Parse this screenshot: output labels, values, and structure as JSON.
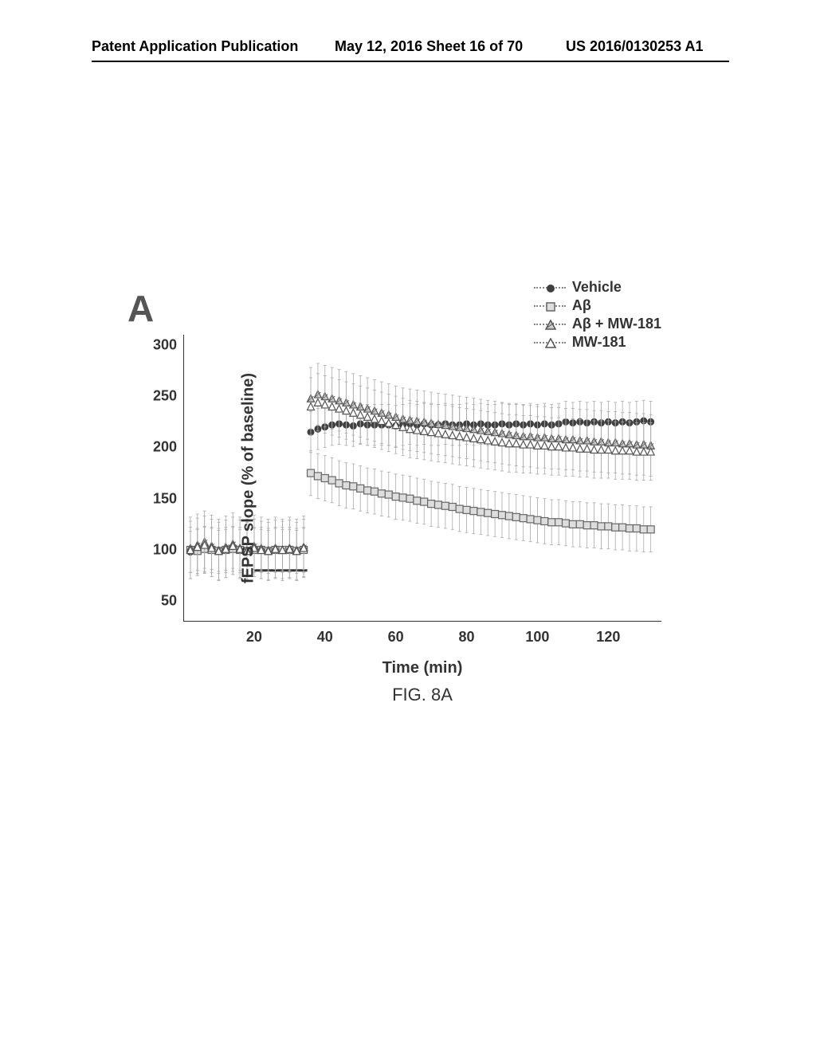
{
  "header": {
    "left": "Patent Application Publication",
    "center": "May 12, 2016  Sheet 16 of 70",
    "right": "US 2016/0130253 A1"
  },
  "figure": {
    "panel_label": "A",
    "caption": "FIG. 8A",
    "chart": {
      "type": "scatter-errorbar",
      "x_label": "Time (min)",
      "y_label": "fEPSP slope (% of baseline)",
      "x_ticks": [
        20,
        40,
        60,
        80,
        100,
        120
      ],
      "y_ticks": [
        50,
        100,
        150,
        200,
        250,
        300
      ],
      "xlim": [
        0,
        135
      ],
      "ylim": [
        30,
        310
      ],
      "background_color": "#ffffff",
      "axis_color": "#333333",
      "errorbar_color": "#aaaaaa",
      "label_fontsize": 20,
      "tick_fontsize": 18,
      "marker_size": 9,
      "line_style": "dotted",
      "perfusion_bar": {
        "x_start": 20,
        "x_end": 35,
        "y": 80,
        "color": "#333333"
      },
      "legend": {
        "items": [
          {
            "label": "Vehicle",
            "marker": "circle-filled",
            "color": "#404040"
          },
          {
            "label": "Aβ",
            "marker": "square-open",
            "color": "#888888"
          },
          {
            "label": "Aβ + MW-181",
            "marker": "triangle-hatched",
            "color": "#888888"
          },
          {
            "label": "MW-181",
            "marker": "triangle-open",
            "color": "#888888"
          }
        ]
      },
      "series": [
        {
          "name": "Vehicle",
          "marker": "circle-filled",
          "color": "#404040",
          "errorbar": 20,
          "data": [
            [
              2,
              98
            ],
            [
              4,
              100
            ],
            [
              6,
              102
            ],
            [
              8,
              101
            ],
            [
              10,
              99
            ],
            [
              12,
              100
            ],
            [
              14,
              102
            ],
            [
              16,
              100
            ],
            [
              18,
              99
            ],
            [
              20,
              101
            ],
            [
              22,
              100
            ],
            [
              24,
              99
            ],
            [
              26,
              101
            ],
            [
              28,
              100
            ],
            [
              30,
              100
            ],
            [
              32,
              99
            ],
            [
              34,
              101
            ],
            [
              36,
              215
            ],
            [
              38,
              218
            ],
            [
              40,
              220
            ],
            [
              42,
              222
            ],
            [
              44,
              223
            ],
            [
              46,
              222
            ],
            [
              48,
              221
            ],
            [
              50,
              223
            ],
            [
              52,
              222
            ],
            [
              54,
              222
            ],
            [
              56,
              222
            ],
            [
              58,
              222
            ],
            [
              60,
              221
            ],
            [
              62,
              222
            ],
            [
              64,
              223
            ],
            [
              66,
              222
            ],
            [
              68,
              223
            ],
            [
              70,
              222
            ],
            [
              72,
              222
            ],
            [
              74,
              223
            ],
            [
              76,
              222
            ],
            [
              78,
              222
            ],
            [
              80,
              223
            ],
            [
              82,
              222
            ],
            [
              84,
              223
            ],
            [
              86,
              222
            ],
            [
              88,
              222
            ],
            [
              90,
              223
            ],
            [
              92,
              222
            ],
            [
              94,
              223
            ],
            [
              96,
              222
            ],
            [
              98,
              223
            ],
            [
              100,
              222
            ],
            [
              102,
              223
            ],
            [
              104,
              222
            ],
            [
              106,
              223
            ],
            [
              108,
              225
            ],
            [
              110,
              224
            ],
            [
              112,
              225
            ],
            [
              114,
              224
            ],
            [
              116,
              225
            ],
            [
              118,
              224
            ],
            [
              120,
              225
            ],
            [
              122,
              224
            ],
            [
              124,
              225
            ],
            [
              126,
              224
            ],
            [
              128,
              225
            ],
            [
              130,
              226
            ],
            [
              132,
              225
            ]
          ]
        },
        {
          "name": "Aβ",
          "marker": "square-open",
          "color": "#888888",
          "errorbar": 22,
          "data": [
            [
              2,
              100
            ],
            [
              4,
              99
            ],
            [
              6,
              101
            ],
            [
              8,
              100
            ],
            [
              10,
              99
            ],
            [
              12,
              100
            ],
            [
              14,
              101
            ],
            [
              16,
              100
            ],
            [
              18,
              99
            ],
            [
              20,
              100
            ],
            [
              22,
              100
            ],
            [
              24,
              99
            ],
            [
              26,
              100
            ],
            [
              28,
              100
            ],
            [
              30,
              100
            ],
            [
              32,
              99
            ],
            [
              34,
              100
            ],
            [
              36,
              175
            ],
            [
              38,
              172
            ],
            [
              40,
              170
            ],
            [
              42,
              168
            ],
            [
              44,
              165
            ],
            [
              46,
              163
            ],
            [
              48,
              162
            ],
            [
              50,
              160
            ],
            [
              52,
              158
            ],
            [
              54,
              157
            ],
            [
              56,
              155
            ],
            [
              58,
              154
            ],
            [
              60,
              152
            ],
            [
              62,
              151
            ],
            [
              64,
              150
            ],
            [
              66,
              148
            ],
            [
              68,
              147
            ],
            [
              70,
              145
            ],
            [
              72,
              144
            ],
            [
              74,
              143
            ],
            [
              76,
              142
            ],
            [
              78,
              140
            ],
            [
              80,
              139
            ],
            [
              82,
              138
            ],
            [
              84,
              137
            ],
            [
              86,
              136
            ],
            [
              88,
              135
            ],
            [
              90,
              134
            ],
            [
              92,
              133
            ],
            [
              94,
              132
            ],
            [
              96,
              131
            ],
            [
              98,
              130
            ],
            [
              100,
              129
            ],
            [
              102,
              128
            ],
            [
              104,
              127
            ],
            [
              106,
              127
            ],
            [
              108,
              126
            ],
            [
              110,
              125
            ],
            [
              112,
              125
            ],
            [
              114,
              124
            ],
            [
              116,
              124
            ],
            [
              118,
              123
            ],
            [
              120,
              123
            ],
            [
              122,
              122
            ],
            [
              124,
              122
            ],
            [
              126,
              121
            ],
            [
              128,
              121
            ],
            [
              130,
              120
            ],
            [
              132,
              120
            ]
          ]
        },
        {
          "name": "Aβ + MW-181",
          "marker": "triangle-hatched",
          "color": "#888888",
          "errorbar": 30,
          "data": [
            [
              2,
              102
            ],
            [
              4,
              105
            ],
            [
              6,
              108
            ],
            [
              8,
              104
            ],
            [
              10,
              100
            ],
            [
              12,
              103
            ],
            [
              14,
              106
            ],
            [
              16,
              102
            ],
            [
              18,
              100
            ],
            [
              20,
              104
            ],
            [
              22,
              102
            ],
            [
              24,
              100
            ],
            [
              26,
              102
            ],
            [
              28,
              100
            ],
            [
              30,
              102
            ],
            [
              32,
              100
            ],
            [
              34,
              103
            ],
            [
              36,
              248
            ],
            [
              38,
              252
            ],
            [
              40,
              250
            ],
            [
              42,
              248
            ],
            [
              44,
              246
            ],
            [
              46,
              244
            ],
            [
              48,
              242
            ],
            [
              50,
              240
            ],
            [
              52,
              238
            ],
            [
              54,
              236
            ],
            [
              56,
              234
            ],
            [
              58,
              232
            ],
            [
              60,
              230
            ],
            [
              62,
              228
            ],
            [
              64,
              227
            ],
            [
              66,
              226
            ],
            [
              68,
              225
            ],
            [
              70,
              224
            ],
            [
              72,
              223
            ],
            [
              74,
              222
            ],
            [
              76,
              221
            ],
            [
              78,
              220
            ],
            [
              80,
              219
            ],
            [
              82,
              218
            ],
            [
              84,
              217
            ],
            [
              86,
              216
            ],
            [
              88,
              215
            ],
            [
              90,
              214
            ],
            [
              92,
              213
            ],
            [
              94,
              212
            ],
            [
              96,
              211
            ],
            [
              98,
              211
            ],
            [
              100,
              210
            ],
            [
              102,
              210
            ],
            [
              104,
              209
            ],
            [
              106,
              209
            ],
            [
              108,
              208
            ],
            [
              110,
              208
            ],
            [
              112,
              207
            ],
            [
              114,
              207
            ],
            [
              116,
              206
            ],
            [
              118,
              206
            ],
            [
              120,
              205
            ],
            [
              122,
              205
            ],
            [
              124,
              204
            ],
            [
              126,
              204
            ],
            [
              128,
              203
            ],
            [
              130,
              203
            ],
            [
              132,
              202
            ]
          ]
        },
        {
          "name": "MW-181",
          "marker": "triangle-open",
          "color": "#888888",
          "errorbar": 28,
          "data": [
            [
              2,
              100
            ],
            [
              4,
              103
            ],
            [
              6,
              105
            ],
            [
              8,
              102
            ],
            [
              10,
              99
            ],
            [
              12,
              101
            ],
            [
              14,
              104
            ],
            [
              16,
              101
            ],
            [
              18,
              99
            ],
            [
              20,
              102
            ],
            [
              22,
              100
            ],
            [
              24,
              99
            ],
            [
              26,
              101
            ],
            [
              28,
              100
            ],
            [
              30,
              101
            ],
            [
              32,
              99
            ],
            [
              34,
              102
            ],
            [
              36,
              240
            ],
            [
              38,
              244
            ],
            [
              40,
              242
            ],
            [
              42,
              240
            ],
            [
              44,
              238
            ],
            [
              46,
              236
            ],
            [
              48,
              234
            ],
            [
              50,
              232
            ],
            [
              52,
              230
            ],
            [
              54,
              228
            ],
            [
              56,
              226
            ],
            [
              58,
              224
            ],
            [
              60,
              222
            ],
            [
              62,
              220
            ],
            [
              64,
              218
            ],
            [
              66,
              217
            ],
            [
              68,
              216
            ],
            [
              70,
              215
            ],
            [
              72,
              214
            ],
            [
              74,
              213
            ],
            [
              76,
              212
            ],
            [
              78,
              211
            ],
            [
              80,
              210
            ],
            [
              82,
              209
            ],
            [
              84,
              208
            ],
            [
              86,
              207
            ],
            [
              88,
              206
            ],
            [
              90,
              205
            ],
            [
              92,
              204
            ],
            [
              94,
              204
            ],
            [
              96,
              203
            ],
            [
              98,
              203
            ],
            [
              100,
              202
            ],
            [
              102,
              202
            ],
            [
              104,
              201
            ],
            [
              106,
              201
            ],
            [
              108,
              200
            ],
            [
              110,
              200
            ],
            [
              112,
              199
            ],
            [
              114,
              199
            ],
            [
              116,
              198
            ],
            [
              118,
              198
            ],
            [
              120,
              198
            ],
            [
              122,
              197
            ],
            [
              124,
              197
            ],
            [
              126,
              197
            ],
            [
              128,
              196
            ],
            [
              130,
              196
            ],
            [
              132,
              196
            ]
          ]
        }
      ]
    }
  }
}
